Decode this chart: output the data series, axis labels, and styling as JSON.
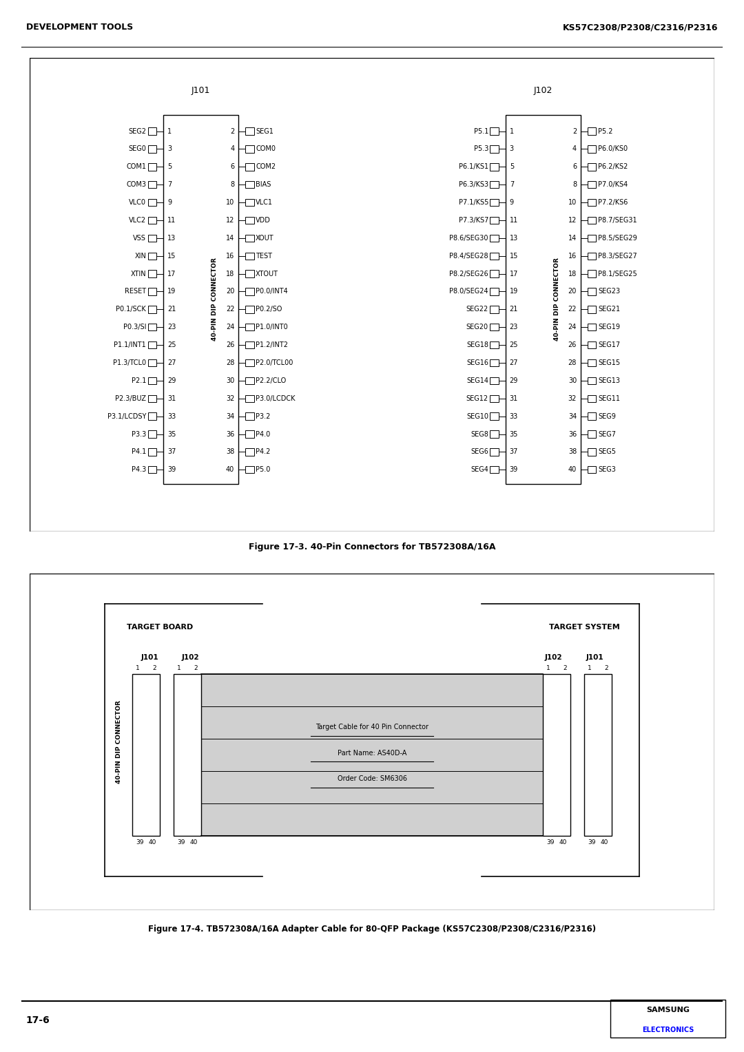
{
  "header_left": "DEVELOPMENT TOOLS",
  "header_right": "KS57C2308/P2308/C2316/P2316",
  "footer_left": "17-6",
  "footer_right_line1": "SAMSUNG",
  "footer_right_line2": "ELECTRONICS",
  "fig1_title": "Figure 17-3. 40-Pin Connectors for TB572308A/16A",
  "fig2_title": "Figure 17-4. TB572308A/16A Adapter Cable for 80-QFP Package (KS57C2308/P2308/C2316/P2316)",
  "j101_title": "J101",
  "j102_title": "J102",
  "connector_label": "40-PIN DIP CONNECTOR",
  "j101_left_pins": [
    [
      "SEG2",
      1
    ],
    [
      "SEG0",
      3
    ],
    [
      "COM1",
      5
    ],
    [
      "COM3",
      7
    ],
    [
      "VLC0",
      9
    ],
    [
      "VLC2",
      11
    ],
    [
      "VSS",
      13
    ],
    [
      "XIN",
      15
    ],
    [
      "XTIN",
      17
    ],
    [
      "RESET",
      19
    ],
    [
      "P0.1/SCK",
      21
    ],
    [
      "P0.3/SI",
      23
    ],
    [
      "P1.1/INT1",
      25
    ],
    [
      "P1.3/TCL0",
      27
    ],
    [
      "P2.1",
      29
    ],
    [
      "P2.3/BUZ",
      31
    ],
    [
      "P3.1/LCDSY",
      33
    ],
    [
      "P3.3",
      35
    ],
    [
      "P4.1",
      37
    ],
    [
      "P4.3",
      39
    ]
  ],
  "j101_right_pins": [
    [
      "SEG1",
      2
    ],
    [
      "COM0",
      4
    ],
    [
      "COM2",
      6
    ],
    [
      "BIAS",
      8
    ],
    [
      "VLC1",
      10
    ],
    [
      "VDD",
      12
    ],
    [
      "XOUT",
      14
    ],
    [
      "TEST",
      16
    ],
    [
      "XTOUT",
      18
    ],
    [
      "P0.0/INT4",
      20
    ],
    [
      "P0.2/SO",
      22
    ],
    [
      "P1.0/INT0",
      24
    ],
    [
      "P1.2/INT2",
      26
    ],
    [
      "P2.0/TCL00",
      28
    ],
    [
      "P2.2/CLO",
      30
    ],
    [
      "P3.0/LCDCK",
      32
    ],
    [
      "P3.2",
      34
    ],
    [
      "P4.0",
      36
    ],
    [
      "P4.2",
      38
    ],
    [
      "P5.0",
      40
    ]
  ],
  "j102_left_pins": [
    [
      "P5.1",
      1
    ],
    [
      "P5.3",
      3
    ],
    [
      "P6.1/KS1",
      5
    ],
    [
      "P6.3/KS3",
      7
    ],
    [
      "P7.1/KS5",
      9
    ],
    [
      "P7.3/KS7",
      11
    ],
    [
      "P8.6/SEG30",
      13
    ],
    [
      "P8.4/SEG28",
      15
    ],
    [
      "P8.2/SEG26",
      17
    ],
    [
      "P8.0/SEG24",
      19
    ],
    [
      "SEG22",
      21
    ],
    [
      "SEG20",
      23
    ],
    [
      "SEG18",
      25
    ],
    [
      "SEG16",
      27
    ],
    [
      "SEG14",
      29
    ],
    [
      "SEG12",
      31
    ],
    [
      "SEG10",
      33
    ],
    [
      "SEG8",
      35
    ],
    [
      "SEG6",
      37
    ],
    [
      "SEG4",
      39
    ]
  ],
  "j102_right_pins": [
    [
      "P5.2",
      2
    ],
    [
      "P6.0/KS0",
      4
    ],
    [
      "P6.2/KS2",
      6
    ],
    [
      "P7.0/KS4",
      8
    ],
    [
      "P7.2/KS6",
      10
    ],
    [
      "P8.7/SEG31",
      12
    ],
    [
      "P8.5/SEG29",
      14
    ],
    [
      "P8.3/SEG27",
      16
    ],
    [
      "P8.1/SEG25",
      18
    ],
    [
      "SEG23",
      20
    ],
    [
      "SEG21",
      22
    ],
    [
      "SEG19",
      24
    ],
    [
      "SEG17",
      26
    ],
    [
      "SEG15",
      28
    ],
    [
      "SEG13",
      30
    ],
    [
      "SEG11",
      32
    ],
    [
      "SEG9",
      34
    ],
    [
      "SEG7",
      36
    ],
    [
      "SEG5",
      38
    ],
    [
      "SEG3",
      40
    ]
  ]
}
